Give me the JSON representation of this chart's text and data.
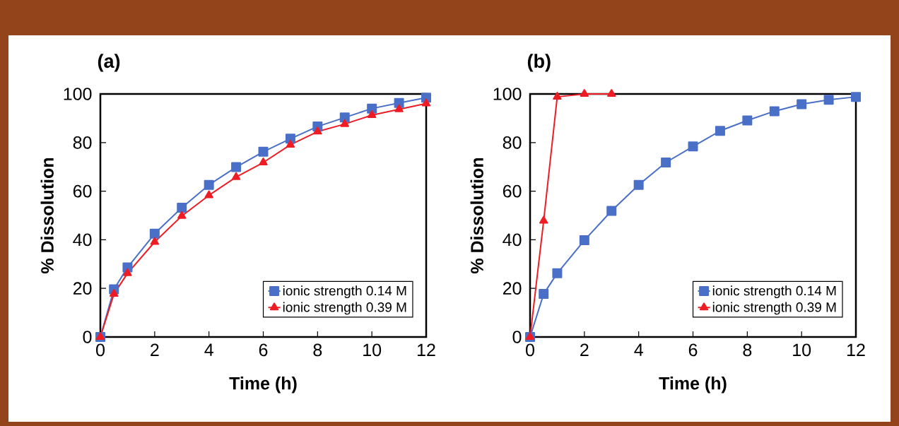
{
  "chart_data": [
    {
      "type": "line",
      "title": "(a)",
      "xlabel": "Time (h)",
      "ylabel": "% Dissolution",
      "xlim": [
        0,
        12
      ],
      "ylim": [
        0,
        100
      ],
      "xticks": [
        0,
        2,
        4,
        6,
        8,
        10,
        12
      ],
      "yticks": [
        0,
        20,
        40,
        60,
        80,
        100
      ],
      "legend": "bottom right",
      "grid": false,
      "line_style": "solid",
      "x": [
        0,
        0.5,
        1,
        2,
        3,
        4,
        5,
        6,
        7,
        8,
        9,
        10,
        11,
        12
      ],
      "series": [
        {
          "name": "ionic strength 0.14 M",
          "color": "#4a6fc7",
          "marker": "square",
          "values": [
            0,
            19.6,
            28.6,
            42.5,
            53.2,
            62.6,
            69.9,
            76.2,
            81.6,
            86.6,
            90.3,
            94,
            96.3,
            98.5
          ]
        },
        {
          "name": "ionic strength 0.39 M",
          "color": "#ee1c24",
          "marker": "triangle",
          "values": [
            0,
            17.7,
            26.2,
            39.1,
            49.8,
            58.3,
            65.8,
            71.8,
            79.1,
            84.5,
            87.6,
            91.3,
            93.7,
            96.1
          ]
        }
      ]
    },
    {
      "type": "line",
      "title": "(b)",
      "xlabel": "Time (h)",
      "ylabel": "% Dissolution",
      "xlim": [
        0,
        12
      ],
      "ylim": [
        0,
        100
      ],
      "xticks": [
        0,
        2,
        4,
        6,
        8,
        10,
        12
      ],
      "yticks": [
        0,
        20,
        40,
        60,
        80,
        100
      ],
      "legend": "bottom right",
      "grid": false,
      "line_style": "solid",
      "series": [
        {
          "name": "ionic strength 0.14 M",
          "color": "#4a6fc7",
          "marker": "square",
          "x": [
            0,
            0.5,
            1,
            2,
            3,
            4,
            5,
            6,
            7,
            8,
            9,
            10,
            11,
            12
          ],
          "values": [
            0,
            17.7,
            26.2,
            39.8,
            51.9,
            62.6,
            71.8,
            78.4,
            84.8,
            89.1,
            92.9,
            95.8,
            97.6,
            98.8
          ]
        },
        {
          "name": "ionic strength 0.39 M",
          "color": "#ee1c24",
          "marker": "triangle",
          "x": [
            0,
            0.5,
            1,
            2,
            3
          ],
          "values": [
            0,
            47.8,
            98.8,
            100,
            100
          ]
        }
      ]
    }
  ]
}
